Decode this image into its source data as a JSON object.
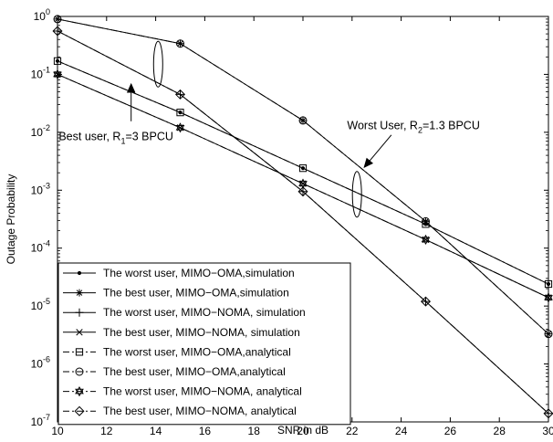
{
  "chart_data": {
    "type": "line",
    "xlabel": "SNR in dB",
    "ylabel": "Outage Probability",
    "xlim": [
      10,
      30
    ],
    "ylim": [
      1e-07,
      1
    ],
    "yscale": "log",
    "x_ticks": [
      10,
      12,
      14,
      16,
      18,
      20,
      22,
      24,
      26,
      28,
      30
    ],
    "y_ticks": [
      {
        "value": 1,
        "mantissa": "10",
        "exp": "0"
      },
      {
        "value": 0.1,
        "mantissa": "10",
        "exp": "-1"
      },
      {
        "value": 0.01,
        "mantissa": "10",
        "exp": "-2"
      },
      {
        "value": 0.001,
        "mantissa": "10",
        "exp": "-3"
      },
      {
        "value": 0.0001,
        "mantissa": "10",
        "exp": "-4"
      },
      {
        "value": 1e-05,
        "mantissa": "10",
        "exp": "-5"
      },
      {
        "value": 1e-06,
        "mantissa": "10",
        "exp": "-6"
      },
      {
        "value": 1e-07,
        "mantissa": "10",
        "exp": "-7"
      }
    ],
    "grid": false,
    "legend_position": "bottom-left",
    "series": [
      {
        "name": "The worst user, MIMO−OMA,simulation",
        "marker": "dot",
        "dash": "solid",
        "x": [
          10,
          15,
          20,
          25,
          30
        ],
        "y": [
          0.17,
          0.022,
          0.0024,
          0.00026,
          2.4e-05
        ]
      },
      {
        "name": "The best user, MIMO−OMA,simulation",
        "marker": "star",
        "dash": "solid",
        "x": [
          10,
          15,
          20,
          25,
          30
        ],
        "y": [
          0.9,
          0.34,
          0.016,
          0.00029,
          3.3e-06
        ]
      },
      {
        "name": "The worst user, MIMO−NOMA, simulation",
        "marker": "plus",
        "dash": "solid",
        "x": [
          10,
          15,
          20,
          25,
          30
        ],
        "y": [
          0.56,
          0.045,
          0.00095,
          1.2e-05,
          1.4e-07
        ]
      },
      {
        "name": "The best user, MIMO−NOMA, simulation",
        "marker": "x",
        "dash": "solid",
        "x": [
          10,
          15,
          20,
          25,
          30
        ],
        "y": [
          0.1,
          0.012,
          0.0013,
          0.00014,
          1.4e-05
        ]
      },
      {
        "name": "The worst user, MIMO−OMA,analytical",
        "marker": "square",
        "dash": "dashdot",
        "x": [
          10,
          15,
          20,
          25,
          30
        ],
        "y": [
          0.17,
          0.022,
          0.0024,
          0.00026,
          2.4e-05
        ]
      },
      {
        "name": "The best user, MIMO−OMA,analytical",
        "marker": "circle",
        "dash": "dashdot",
        "x": [
          10,
          15,
          20,
          25,
          30
        ],
        "y": [
          0.9,
          0.34,
          0.016,
          0.00029,
          3.3e-06
        ]
      },
      {
        "name": "The worst user, MIMO−NOMA, analytical",
        "marker": "hexagram",
        "dash": "dashdot",
        "x": [
          10,
          15,
          20,
          25,
          30
        ],
        "y": [
          0.1,
          0.012,
          0.0013,
          0.00014,
          1.4e-05
        ]
      },
      {
        "name": "The best user, MIMO−NOMA, analytical",
        "marker": "diamond",
        "dash": "dashdot",
        "x": [
          10,
          15,
          20,
          25,
          30
        ],
        "y": [
          0.56,
          0.045,
          0.00095,
          1.2e-05,
          1.4e-07
        ]
      }
    ],
    "annotations": [
      {
        "id": "best",
        "prefix": "Best user, R",
        "sub": "1",
        "suffix": "=3 BPCU",
        "ellipse_center": [
          14.1,
          0.15
        ],
        "arrow_from": [
          13.0,
          0.0155
        ],
        "arrow_to": [
          13.0,
          0.068
        ],
        "text_anchor": [
          10.05,
          0.0073
        ]
      },
      {
        "id": "worst",
        "prefix": "Worst User, R",
        "sub": "2",
        "suffix": "=1.3 BPCU",
        "ellipse_center": [
          22.2,
          0.00085
        ],
        "arrow_from": [
          23.6,
          0.009
        ],
        "arrow_to": [
          22.5,
          0.0025
        ],
        "text_anchor": [
          21.8,
          0.0112
        ]
      }
    ]
  }
}
